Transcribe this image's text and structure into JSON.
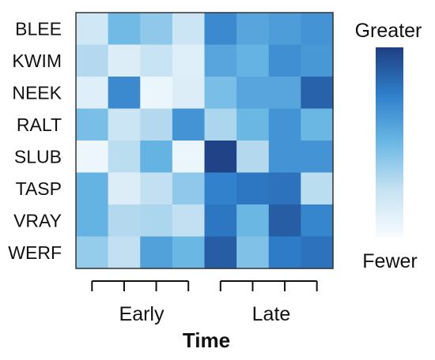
{
  "chart_data": {
    "type": "heatmap",
    "rows": [
      "BLEE",
      "KWIM",
      "NEEK",
      "RALT",
      "SLUB",
      "TASP",
      "VRAY",
      "WERF"
    ],
    "column_groups": [
      {
        "label": "Early",
        "columns": 4
      },
      {
        "label": "Late",
        "columns": 4
      }
    ],
    "xlabel": "Time",
    "color_scale": {
      "low_label": "Fewer",
      "high_label": "Greater",
      "low_color": "#f7fbff",
      "mid_color": "#6ab7e4",
      "high_color": "#1f3e82"
    },
    "values": [
      [
        0.2,
        0.48,
        0.4,
        0.22,
        0.7,
        0.58,
        0.62,
        0.66
      ],
      [
        0.3,
        0.14,
        0.24,
        0.12,
        0.58,
        0.52,
        0.68,
        0.64
      ],
      [
        0.12,
        0.7,
        0.06,
        0.14,
        0.46,
        0.58,
        0.58,
        0.86
      ],
      [
        0.46,
        0.22,
        0.3,
        0.66,
        0.32,
        0.5,
        0.66,
        0.5
      ],
      [
        0.05,
        0.28,
        0.52,
        0.06,
        0.98,
        0.3,
        0.66,
        0.66
      ],
      [
        0.52,
        0.14,
        0.26,
        0.4,
        0.74,
        0.78,
        0.8,
        0.28
      ],
      [
        0.52,
        0.3,
        0.32,
        0.26,
        0.78,
        0.5,
        0.88,
        0.72
      ],
      [
        0.38,
        0.26,
        0.6,
        0.5,
        0.88,
        0.44,
        0.76,
        0.8
      ]
    ],
    "grid": false
  }
}
